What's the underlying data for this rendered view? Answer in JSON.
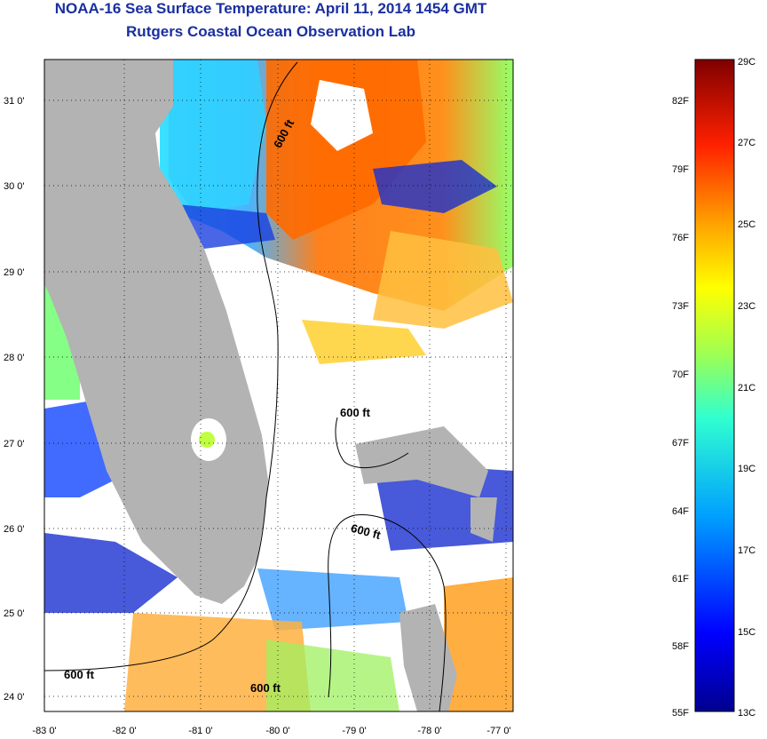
{
  "title": {
    "line1": "NOAA-16 Sea Surface Temperature:  April 11, 2014 1454 GMT",
    "line2": "Rutgers Coastal Ocean Observation Lab"
  },
  "map": {
    "lat_labels": [
      "31 0'",
      "30 0'",
      "29 0'",
      "28 0'",
      "27 0'",
      "26 0'",
      "25 0'",
      "24 0'"
    ],
    "lon_labels": [
      "-83 0'",
      "-82 0'",
      "-81 0'",
      "-80 0'",
      "-79 0'",
      "-78 0'",
      "-77 0'"
    ],
    "contour_labels": [
      "600 ft",
      "600 ft",
      "600 ft",
      "600 ft",
      "600 ft"
    ],
    "land_color": "#b3b3b3",
    "cloud_color": "#ffffff"
  },
  "colorbar": {
    "fahrenheit_labels": [
      "82F",
      "79F",
      "76F",
      "73F",
      "70F",
      "67F",
      "64F",
      "61F",
      "58F",
      "55F"
    ],
    "celsius_labels": [
      "29C",
      "27C",
      "25C",
      "23C",
      "21C",
      "19C",
      "17C",
      "15C",
      "13C"
    ],
    "colors": [
      "#7f0000",
      "#c80000",
      "#ff3000",
      "#ff9000",
      "#ffe000",
      "#b0ff40",
      "#30ffc0",
      "#00c0ff",
      "#0060ff",
      "#0000d0",
      "#00008f"
    ]
  }
}
